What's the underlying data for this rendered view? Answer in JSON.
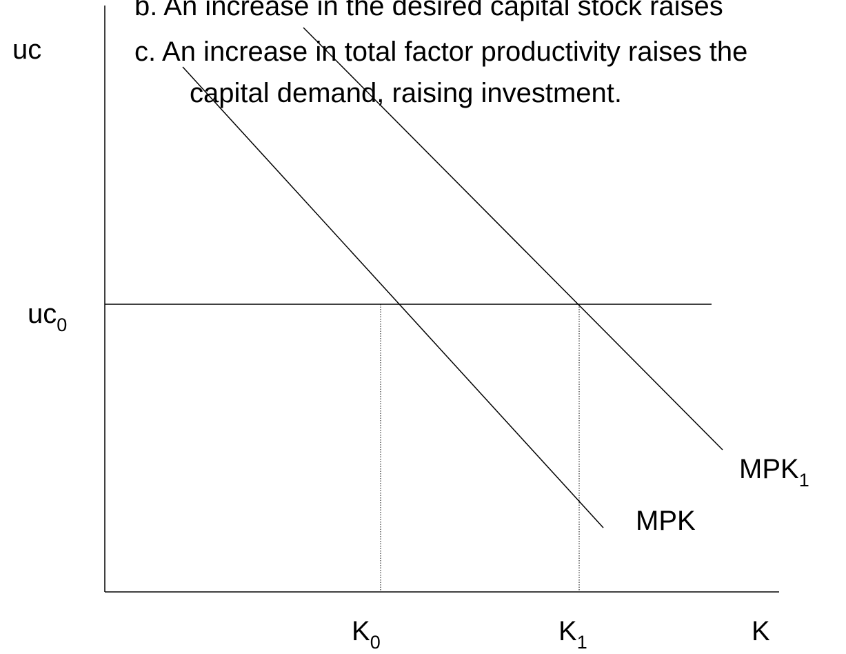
{
  "slide": {
    "bullets": [
      "b.  An increase in the desired capital stock raises",
      "c. An increase in total factor productivity raises the",
      "capital demand, raising investment."
    ],
    "y_axis_label": "uc",
    "x_axis_label": "K",
    "uc_level": {
      "base": "uc",
      "sub": "0"
    },
    "k0": {
      "base": "K",
      "sub": "0"
    },
    "k1": {
      "base": "K",
      "sub": "1"
    },
    "mpk": "MPK",
    "mpk1": {
      "base": "MPK",
      "sub": "1"
    }
  }
}
